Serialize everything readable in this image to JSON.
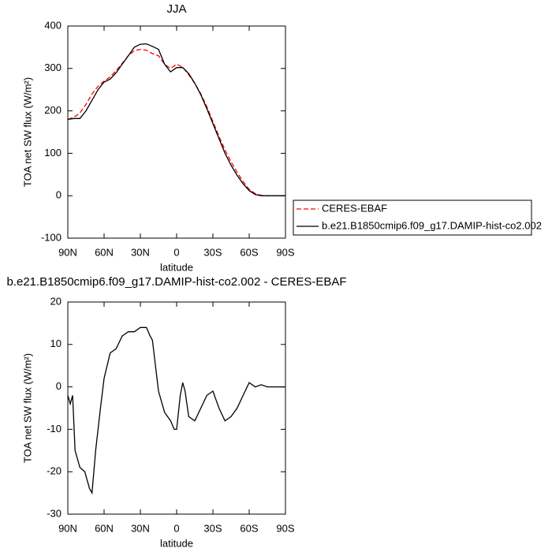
{
  "chart_data": [
    {
      "type": "line",
      "title": "JJA",
      "xlabel": "latitude",
      "ylabel": "TOA net SW flux (W/m²)",
      "x": [
        90,
        85,
        80,
        75,
        70,
        65,
        60,
        55,
        50,
        45,
        40,
        35,
        30,
        25,
        20,
        15,
        10,
        5,
        0,
        -5,
        -10,
        -15,
        -20,
        -25,
        -30,
        -35,
        -40,
        -45,
        -50,
        -55,
        -60,
        -65,
        -70,
        -75,
        -80,
        -85,
        -90
      ],
      "series": [
        {
          "name": "CERES-EBAF",
          "color": "#ff0000",
          "dashed": true,
          "values": [
            180,
            185,
            195,
            215,
            240,
            258,
            270,
            280,
            295,
            312,
            330,
            342,
            345,
            343,
            335,
            330,
            310,
            300,
            310,
            303,
            285,
            265,
            240,
            210,
            175,
            140,
            108,
            80,
            55,
            33,
            15,
            5,
            1,
            0,
            0,
            0,
            0
          ]
        },
        {
          "name": "b.e21.B1850cmip6.f09_g17.DAMIP-hist-co2.002",
          "color": "#000000",
          "dashed": false,
          "values": [
            180,
            182,
            182,
            200,
            225,
            250,
            268,
            275,
            290,
            310,
            330,
            350,
            357,
            358,
            352,
            345,
            310,
            292,
            302,
            302,
            288,
            265,
            238,
            205,
            170,
            135,
            100,
            72,
            48,
            28,
            12,
            3,
            0,
            0,
            0,
            0,
            0
          ]
        }
      ],
      "xlim": [
        90,
        -90
      ],
      "xticks": [
        {
          "value": 90,
          "label": "90N"
        },
        {
          "value": 60,
          "label": "60N"
        },
        {
          "value": 30,
          "label": "30N"
        },
        0,
        {
          "value": -30,
          "label": "30S"
        },
        {
          "value": -60,
          "label": "60S"
        },
        {
          "value": -90,
          "label": "90S"
        }
      ],
      "ylim": [
        -100,
        400
      ],
      "yticks": [
        -100,
        0,
        100,
        200,
        300,
        400
      ],
      "grid": false,
      "legend": "outside-right"
    },
    {
      "type": "line",
      "title": "b.e21.B1850cmip6.f09_g17.DAMIP-hist-co2.002 - CERES-EBAF",
      "xlabel": "latitude",
      "ylabel": "TOA net SW flux (W/m²)",
      "x": [
        90,
        88,
        86,
        84,
        80,
        76,
        72,
        70,
        67,
        63,
        60,
        55,
        50,
        45,
        40,
        35,
        30,
        25,
        22,
        20,
        15,
        10,
        5,
        2,
        0,
        -3,
        -5,
        -7,
        -10,
        -15,
        -20,
        -25,
        -30,
        -35,
        -40,
        -45,
        -50,
        -55,
        -60,
        -65,
        -70,
        -75,
        -80,
        -90
      ],
      "color": "#000000",
      "values": [
        -2,
        -4,
        -2,
        -15,
        -19,
        -20,
        -24,
        -25,
        -15,
        -5,
        2,
        8,
        9,
        12,
        13,
        13,
        14,
        14,
        12,
        11,
        -1,
        -6,
        -8,
        -10,
        -10,
        -2,
        1,
        -1,
        -7,
        -8,
        -5,
        -2,
        -1,
        -5,
        -8,
        -7,
        -5,
        -2,
        1,
        0,
        0.5,
        0,
        0,
        0
      ],
      "xlim": [
        90,
        -90
      ],
      "xticks": [
        {
          "value": 90,
          "label": "90N"
        },
        {
          "value": 60,
          "label": "60N"
        },
        {
          "value": 30,
          "label": "30N"
        },
        0,
        {
          "value": -30,
          "label": "30S"
        },
        {
          "value": -60,
          "label": "60S"
        },
        {
          "value": -90,
          "label": "90S"
        }
      ],
      "ylim": [
        -30,
        20
      ],
      "yticks": [
        -30,
        -20,
        -10,
        0,
        10,
        20
      ],
      "grid": false
    }
  ]
}
